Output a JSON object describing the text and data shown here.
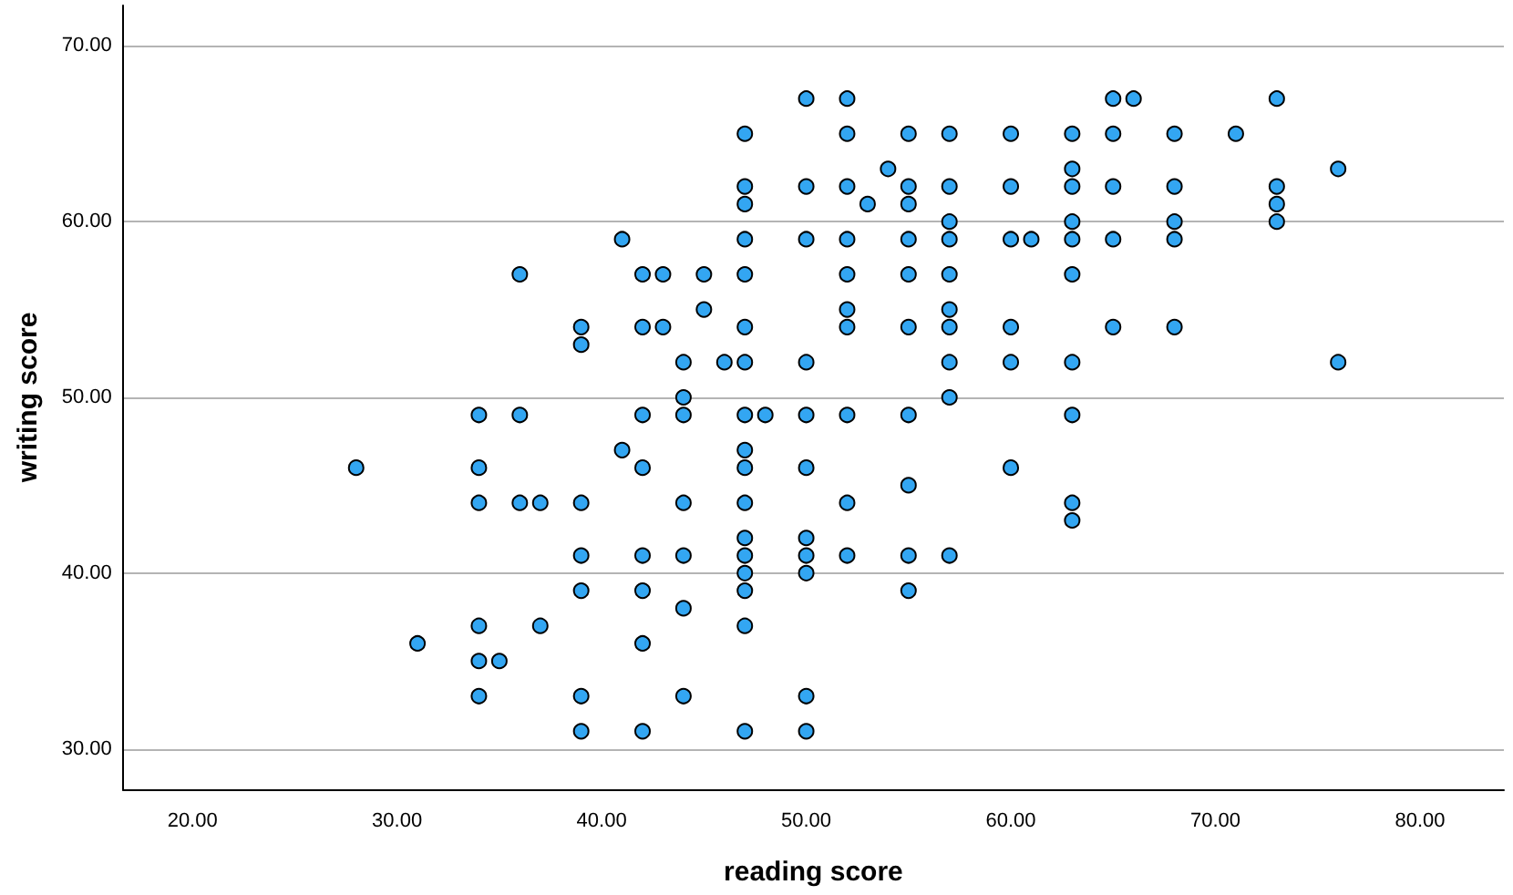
{
  "chart_data": {
    "type": "scatter",
    "xlabel": "reading score",
    "ylabel": "writing score",
    "color": "#33a6f2",
    "marker": "circle",
    "grid": "y",
    "xlim": [
      16.6,
      84.1
    ],
    "ylim": [
      27.7,
      72.3
    ],
    "xticks": [
      {
        "value": 20,
        "label": "20.00"
      },
      {
        "value": 30,
        "label": "30.00"
      },
      {
        "value": 40,
        "label": "40.00"
      },
      {
        "value": 50,
        "label": "50.00"
      },
      {
        "value": 60,
        "label": "60.00"
      },
      {
        "value": 70,
        "label": "70.00"
      },
      {
        "value": 80,
        "label": "80.00"
      }
    ],
    "yticks": [
      {
        "value": 30,
        "label": "30.00"
      },
      {
        "value": 40,
        "label": "40.00"
      },
      {
        "value": 50,
        "label": "50.00"
      },
      {
        "value": 60,
        "label": "60.00"
      },
      {
        "value": 70,
        "label": "70.00"
      }
    ],
    "x": [
      28,
      31,
      34,
      34,
      34,
      34,
      34,
      34,
      35,
      36,
      36,
      36,
      37,
      37,
      39,
      39,
      39,
      39,
      39,
      39,
      39,
      41,
      41,
      42,
      42,
      42,
      42,
      42,
      42,
      42,
      42,
      43,
      43,
      44,
      44,
      44,
      44,
      44,
      44,
      44,
      45,
      45,
      46,
      47,
      47,
      47,
      47,
      47,
      47,
      47,
      47,
      47,
      47,
      47,
      47,
      47,
      47,
      47,
      47,
      47,
      48,
      50,
      50,
      50,
      50,
      50,
      50,
      50,
      50,
      50,
      50,
      50,
      52,
      52,
      52,
      52,
      52,
      52,
      52,
      52,
      52,
      52,
      53,
      54,
      55,
      55,
      55,
      55,
      55,
      55,
      55,
      55,
      55,
      55,
      57,
      57,
      57,
      57,
      57,
      57,
      57,
      57,
      57,
      57,
      60,
      60,
      60,
      60,
      60,
      60,
      61,
      63,
      63,
      63,
      63,
      63,
      63,
      63,
      63,
      63,
      63,
      65,
      65,
      65,
      65,
      65,
      66,
      68,
      68,
      68,
      68,
      68,
      71,
      73,
      73,
      73,
      73,
      76,
      76
    ],
    "values": [
      46,
      36,
      49,
      46,
      44,
      37,
      35,
      33,
      35,
      57,
      49,
      44,
      44,
      37,
      54,
      53,
      44,
      41,
      39,
      33,
      31,
      59,
      47,
      57,
      54,
      49,
      46,
      41,
      39,
      36,
      31,
      57,
      54,
      52,
      50,
      49,
      44,
      41,
      38,
      33,
      57,
      55,
      52,
      65,
      62,
      61,
      59,
      57,
      54,
      52,
      49,
      47,
      46,
      44,
      42,
      41,
      40,
      39,
      37,
      31,
      49,
      67,
      62,
      59,
      52,
      49,
      46,
      42,
      41,
      40,
      33,
      31,
      67,
      65,
      62,
      59,
      57,
      55,
      54,
      49,
      44,
      41,
      61,
      63,
      65,
      62,
      61,
      59,
      57,
      54,
      49,
      45,
      41,
      39,
      65,
      62,
      60,
      59,
      57,
      55,
      54,
      52,
      50,
      41,
      65,
      62,
      59,
      54,
      52,
      46,
      59,
      65,
      63,
      62,
      60,
      59,
      57,
      52,
      49,
      44,
      43,
      67,
      65,
      62,
      59,
      54,
      67,
      65,
      62,
      60,
      59,
      54,
      65,
      67,
      62,
      61,
      60,
      63,
      52
    ]
  }
}
